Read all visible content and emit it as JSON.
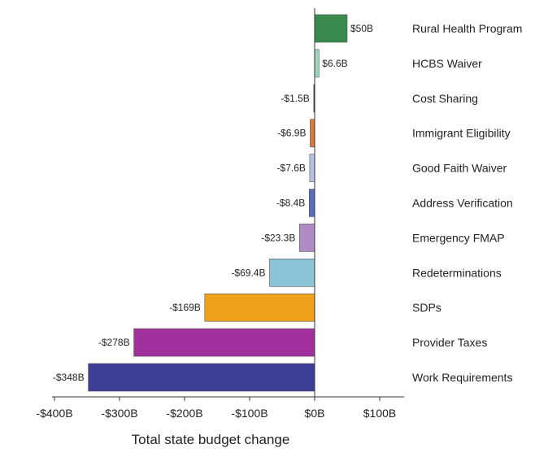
{
  "chart_data": {
    "type": "bar",
    "orientation": "horizontal",
    "xlabel": "Total state budget change",
    "ylabel": "",
    "xlim": [
      -400,
      100
    ],
    "x_ticks": [
      -400,
      -300,
      -200,
      -100,
      0,
      100
    ],
    "x_tick_labels": [
      "-$400B",
      "-$300B",
      "-$200B",
      "-$100B",
      "$0B",
      "$100B"
    ],
    "categories": [
      "Rural Health Program",
      "HCBS Waiver",
      "Cost Sharing",
      "Immigrant Eligibility",
      "Good Faith Waiver",
      "Address Verification",
      "Emergency FMAP",
      "Redeterminations",
      "SDPs",
      "Provider Taxes",
      "Work Requirements"
    ],
    "values": [
      50,
      6.6,
      -1.5,
      -6.9,
      -7.6,
      -8.4,
      -23.3,
      -69.4,
      -169,
      -278,
      -348
    ],
    "value_labels": [
      "$50B",
      "$6.6B",
      "-$1.5B",
      "-$6.9B",
      "-$7.6B",
      "-$8.4B",
      "-$23.3B",
      "-$69.4B",
      "-$169B",
      "-$278B",
      "-$348B"
    ],
    "colors": [
      "#3a8a50",
      "#9fd6bf",
      "#2b2b2b",
      "#d97a3a",
      "#b7c3e6",
      "#5a6cc4",
      "#b08cc6",
      "#8bc3d7",
      "#f0a21c",
      "#a0309c",
      "#3d3e96"
    ],
    "grid": false,
    "legend": "none"
  }
}
